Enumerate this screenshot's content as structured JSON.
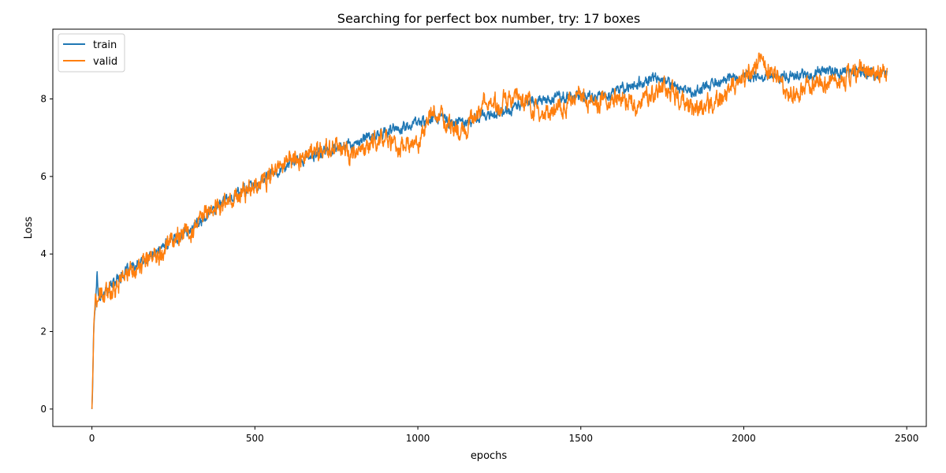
{
  "chart_data": {
    "type": "line",
    "title": "Searching for perfect box number, try: 17 boxes",
    "xlabel": "epochs",
    "ylabel": "Loss",
    "xlim": [
      -120,
      2560
    ],
    "ylim": [
      -0.45,
      9.8
    ],
    "xticks": [
      0,
      500,
      1000,
      1500,
      2000,
      2500
    ],
    "yticks": [
      0,
      2,
      4,
      6,
      8
    ],
    "grid": false,
    "legend": "top-left",
    "series": [
      {
        "name": "train",
        "color": "#1f77b4",
        "x": [
          0,
          2,
          5,
          8,
          12,
          16,
          20,
          30,
          50,
          80,
          100,
          150,
          200,
          250,
          300,
          350,
          400,
          450,
          500,
          550,
          600,
          650,
          700,
          750,
          800,
          850,
          900,
          950,
          1000,
          1050,
          1100,
          1150,
          1200,
          1250,
          1300,
          1350,
          1400,
          1450,
          1500,
          1550,
          1600,
          1650,
          1700,
          1750,
          1800,
          1850,
          1900,
          1950,
          2000,
          2050,
          2100,
          2150,
          2200,
          2250,
          2300,
          2350,
          2400,
          2440
        ],
        "y": [
          0.0,
          0.5,
          1.9,
          2.5,
          2.9,
          3.6,
          2.95,
          2.9,
          3.1,
          3.4,
          3.5,
          3.75,
          4.05,
          4.4,
          4.6,
          5.0,
          5.35,
          5.6,
          5.75,
          6.05,
          6.3,
          6.45,
          6.6,
          6.75,
          6.85,
          7.0,
          7.15,
          7.25,
          7.4,
          7.55,
          7.4,
          7.45,
          7.55,
          7.65,
          7.8,
          7.95,
          8.0,
          8.05,
          8.05,
          8.1,
          8.2,
          8.3,
          8.45,
          8.5,
          8.3,
          8.2,
          8.4,
          8.55,
          8.55,
          8.6,
          8.6,
          8.6,
          8.65,
          8.7,
          8.75,
          8.7,
          8.65,
          8.6
        ]
      },
      {
        "name": "valid",
        "color": "#ff7f0e",
        "x": [
          0,
          3,
          6,
          10,
          15,
          20,
          30,
          50,
          80,
          100,
          150,
          200,
          250,
          300,
          350,
          400,
          450,
          500,
          550,
          600,
          650,
          700,
          750,
          800,
          850,
          900,
          950,
          1000,
          1050,
          1100,
          1150,
          1200,
          1250,
          1300,
          1350,
          1400,
          1450,
          1500,
          1550,
          1600,
          1650,
          1700,
          1750,
          1800,
          1850,
          1900,
          1950,
          2000,
          2050,
          2100,
          2150,
          2200,
          2250,
          2300,
          2350,
          2400,
          2440
        ],
        "y": [
          0.0,
          1.0,
          2.2,
          2.8,
          2.6,
          2.85,
          2.85,
          3.0,
          3.3,
          3.45,
          3.7,
          4.05,
          4.45,
          4.55,
          5.05,
          5.3,
          5.5,
          5.8,
          6.0,
          6.4,
          6.55,
          6.65,
          6.8,
          6.5,
          6.85,
          7.0,
          6.75,
          6.8,
          7.65,
          7.3,
          7.25,
          7.9,
          7.8,
          8.1,
          7.75,
          7.55,
          7.8,
          8.1,
          7.95,
          8.0,
          7.8,
          8.0,
          8.3,
          8.0,
          7.7,
          7.9,
          8.2,
          8.55,
          8.9,
          8.5,
          8.1,
          8.3,
          8.4,
          8.35,
          8.7,
          8.8,
          8.6
        ]
      }
    ]
  }
}
